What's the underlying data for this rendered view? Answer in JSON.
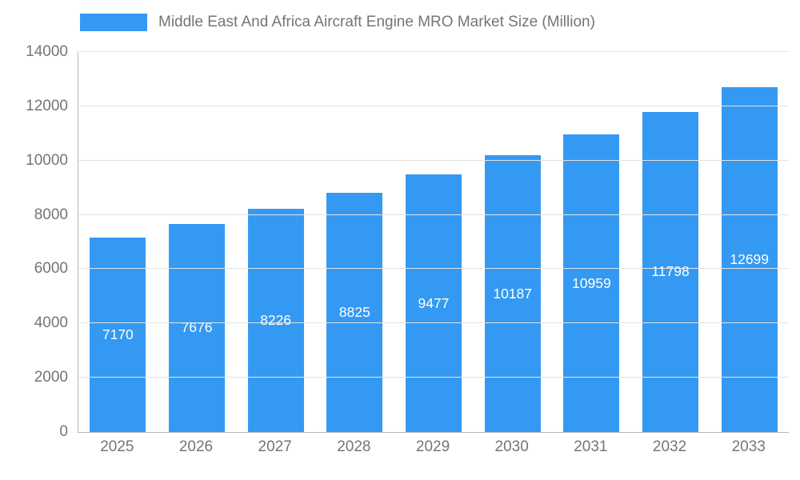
{
  "legend": {
    "label": "Middle East And Africa Aircraft Engine MRO Market Size (Million)"
  },
  "chart_data": {
    "type": "bar",
    "title": "Middle East And Africa Aircraft Engine MRO Market Size (Million)",
    "categories": [
      "2025",
      "2026",
      "2027",
      "2028",
      "2029",
      "2030",
      "2031",
      "2032",
      "2033"
    ],
    "values": [
      7170,
      7676,
      8226,
      8825,
      9477,
      10187,
      10959,
      11798,
      12699
    ],
    "xlabel": "",
    "ylabel": "",
    "ylim": [
      0,
      14000
    ],
    "ytick_step": 2000,
    "grid": true,
    "legend_position": "top",
    "bar_color": "#3499f2",
    "value_label_color": "#ffffff",
    "value_label_position": "center-inside"
  }
}
